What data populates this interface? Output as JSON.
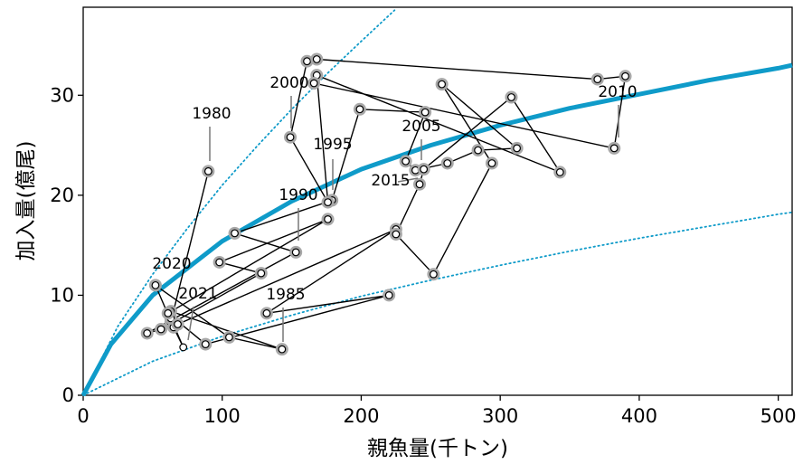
{
  "chart_data": {
    "type": "scatter",
    "xlabel": "親魚量(千トン)",
    "ylabel": "加入量(億尾)",
    "xlim": [
      0,
      510
    ],
    "ylim": [
      0,
      38.8
    ],
    "x_ticks": [
      "0",
      "100",
      "200",
      "300",
      "400",
      "500"
    ],
    "y_ticks": [
      "0",
      "10",
      "20",
      "30"
    ],
    "grid": false,
    "colors": {
      "curve": "#0f9bc9",
      "path": "#000000",
      "halo": "#a8a8a8"
    },
    "series": [
      {
        "type": "line",
        "points": [
          [
            90,
            22.4
          ],
          [
            63,
            7.3
          ],
          [
            63,
            8.4
          ],
          [
            143,
            4.6
          ],
          [
            105,
            5.8
          ],
          [
            52,
            11
          ],
          [
            65,
            6.8
          ],
          [
            72,
            4.8
          ],
          [
            63,
            7.7
          ],
          [
            68,
            7.1
          ],
          [
            225,
            16.6
          ],
          [
            132,
            8.2
          ],
          [
            220,
            10
          ],
          [
            88,
            5.1
          ],
          [
            61,
            8.2
          ],
          [
            176,
            17.6
          ],
          [
            98,
            13.3
          ],
          [
            128,
            12.2
          ],
          [
            56,
            6.6
          ],
          [
            46,
            6.2
          ],
          [
            153,
            14.3
          ],
          [
            109,
            16.2
          ],
          [
            179,
            19.5
          ],
          [
            199,
            28.6
          ],
          [
            246,
            28.3
          ],
          [
            232,
            23.4
          ],
          [
            239,
            22.5
          ],
          [
            262,
            23.2
          ],
          [
            284,
            24.5
          ],
          [
            312,
            24.7
          ],
          [
            258,
            31.1
          ],
          [
            294,
            23.2
          ],
          [
            252,
            12.1
          ],
          [
            225,
            16.1
          ],
          [
            242,
            21.1
          ],
          [
            245,
            22.6
          ],
          [
            308,
            29.8
          ],
          [
            343,
            22.3
          ],
          [
            168,
            32.0
          ],
          [
            176,
            19.3
          ],
          [
            149,
            25.8
          ],
          [
            161,
            33.4
          ],
          [
            168,
            33.6
          ],
          [
            370,
            31.6
          ],
          [
            390,
            31.9
          ],
          [
            382,
            24.7
          ],
          [
            166,
            31.2
          ]
        ]
      }
    ],
    "curve": {
      "label": "",
      "points": [
        [
          0,
          0
        ],
        [
          20,
          5.1
        ],
        [
          50,
          10.0
        ],
        [
          100,
          15.4
        ],
        [
          150,
          19.4
        ],
        [
          200,
          22.6
        ],
        [
          250,
          25.0
        ],
        [
          300,
          27.0
        ],
        [
          350,
          28.7
        ],
        [
          400,
          30.1
        ],
        [
          450,
          31.5
        ],
        [
          500,
          32.7
        ],
        [
          510,
          33.0
        ]
      ]
    },
    "upper_bound": {
      "points": [
        [
          0,
          0
        ],
        [
          25,
          6.9
        ],
        [
          50,
          12.1
        ],
        [
          75,
          16.7
        ],
        [
          100,
          21.0
        ],
        [
          125,
          24.9
        ],
        [
          150,
          28.6
        ],
        [
          175,
          32.1
        ],
        [
          200,
          35.4
        ],
        [
          224,
          38.5
        ]
      ]
    },
    "lower_bound": {
      "points": [
        [
          0,
          0
        ],
        [
          50,
          3.4
        ],
        [
          100,
          5.9
        ],
        [
          150,
          8.0
        ],
        [
          200,
          9.9
        ],
        [
          250,
          11.5
        ],
        [
          300,
          13.0
        ],
        [
          350,
          14.4
        ],
        [
          400,
          15.7
        ],
        [
          450,
          16.9
        ],
        [
          500,
          18.1
        ],
        [
          510,
          18.3
        ]
      ]
    },
    "year_labels": [
      {
        "text": "1980",
        "x": 90,
        "y": 22.4
      },
      {
        "text": "1985",
        "x": 143,
        "y": 4.6
      },
      {
        "text": "1990",
        "x": 153,
        "y": 14.3
      },
      {
        "text": "1995",
        "x": 179,
        "y": 19.5
      },
      {
        "text": "2000",
        "x": 149,
        "y": 25.8
      },
      {
        "text": "2005",
        "x": 245,
        "y": 22.6
      },
      {
        "text": "2010",
        "x": 382,
        "y": 24.7
      },
      {
        "text": "2015",
        "x": 242,
        "y": 21.1
      },
      {
        "text": "2020",
        "x": 52,
        "y": 11
      },
      {
        "text": "2021",
        "x": 72,
        "y": 4.8
      }
    ]
  }
}
